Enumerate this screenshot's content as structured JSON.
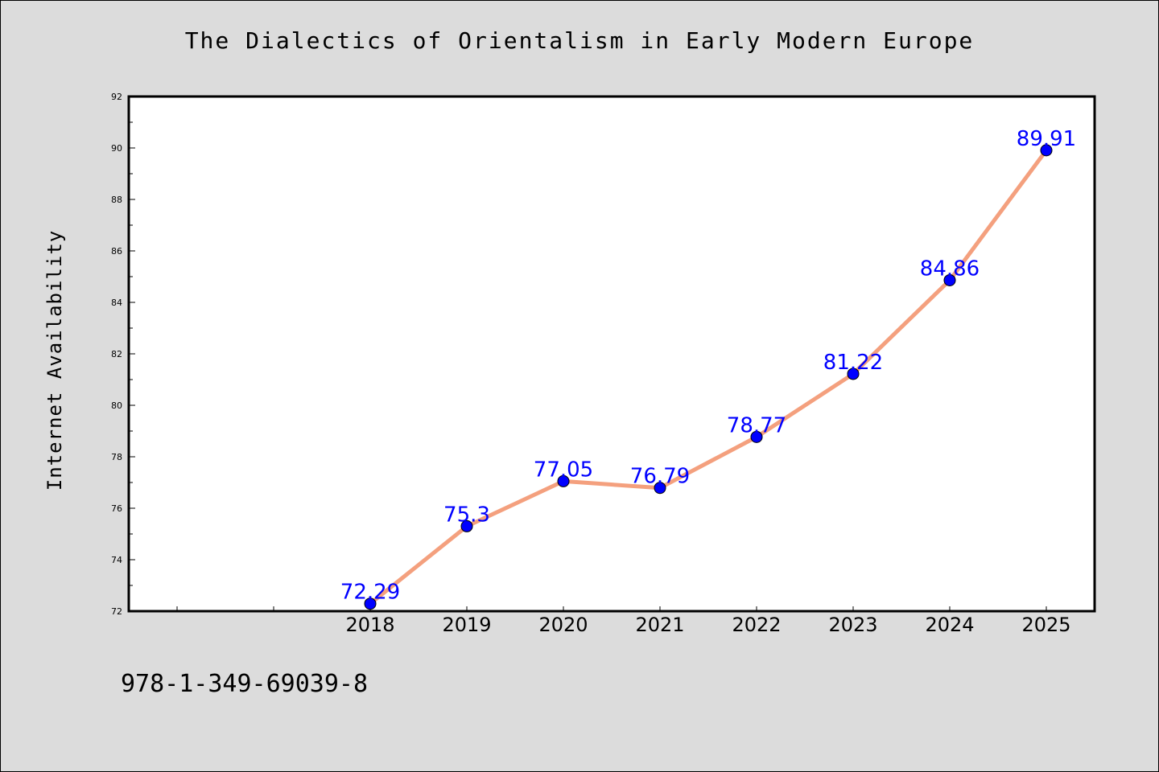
{
  "chart_data": {
    "type": "line",
    "title": "The Dialectics of Orientalism in Early Modern Europe",
    "xlabel": "",
    "ylabel": "Internet Availability",
    "categories": [
      "2018",
      "2019",
      "2020",
      "2021",
      "2022",
      "2023",
      "2024",
      "2025"
    ],
    "series": [
      {
        "values": [
          72.29,
          75.3,
          77.05,
          76.79,
          78.77,
          81.22,
          84.86,
          89.91
        ],
        "labels": [
          "72.29",
          "75.3",
          "77.05",
          "76.79",
          "78.77",
          "81.22",
          "84.86",
          "89.91"
        ]
      }
    ],
    "ylim": [
      72,
      92
    ],
    "yticks": [
      72,
      74,
      76,
      78,
      80,
      82,
      84,
      86,
      88,
      90,
      92
    ],
    "grid": false,
    "legend": "none",
    "colors": {
      "line": "#f4a07e",
      "marker": "#0000ff",
      "label": "#0000ff",
      "background": "#dcdcdc",
      "plot_background": "#ffffff"
    }
  },
  "footer": {
    "isbn": "978-1-349-69039-8"
  }
}
